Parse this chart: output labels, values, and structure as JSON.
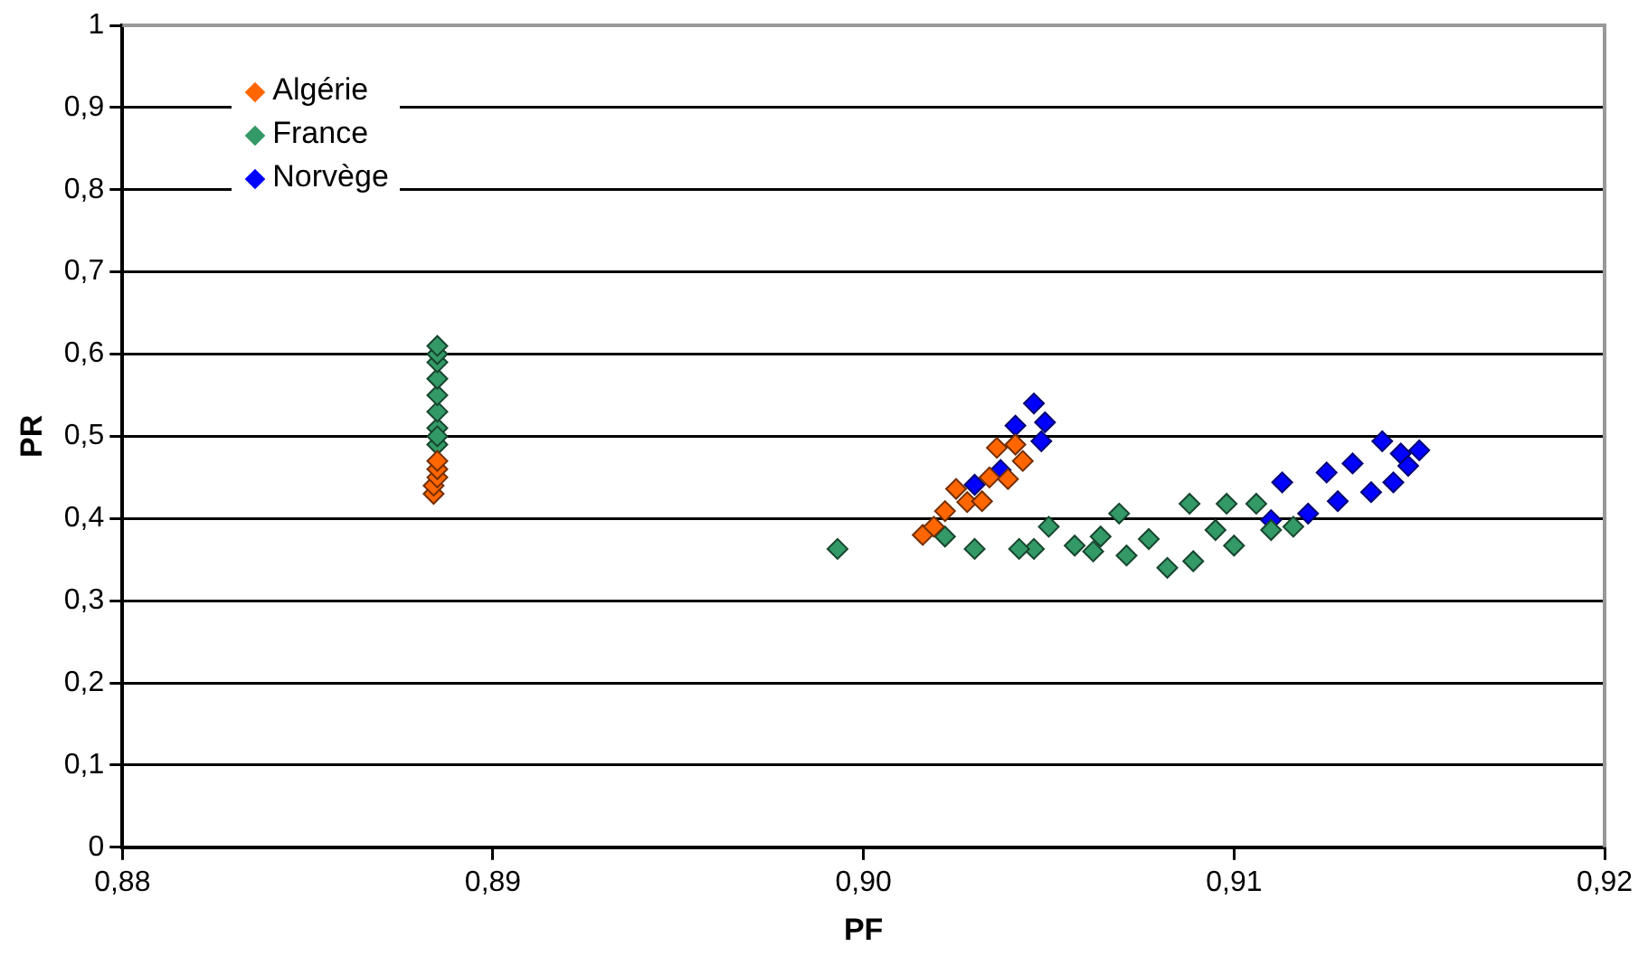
{
  "chart_data": {
    "type": "scatter",
    "xlabel": "PF",
    "ylabel": "PR",
    "xlim": [
      0.88,
      0.92
    ],
    "xticks": [
      {
        "value": 0.88,
        "label": "0,88"
      },
      {
        "value": 0.89,
        "label": "0,89"
      },
      {
        "value": 0.9,
        "label": "0,90"
      },
      {
        "value": 0.91,
        "label": "0,91"
      },
      {
        "value": 0.92,
        "label": "0,92"
      }
    ],
    "ylim": [
      0,
      1
    ],
    "yticks": [
      0,
      {
        "value": 0.1,
        "label": "0,1"
      },
      {
        "value": 0.2,
        "label": "0,2"
      },
      {
        "value": 0.3,
        "label": "0,3"
      },
      {
        "value": 0.4,
        "label": "0,4"
      },
      {
        "value": 0.5,
        "label": "0,5"
      },
      {
        "value": 0.6,
        "label": "0,6"
      },
      {
        "value": 0.7,
        "label": "0,7"
      },
      {
        "value": 0.8,
        "label": "0,8"
      },
      {
        "value": 0.9,
        "label": "0,9"
      },
      1
    ],
    "grid": "y",
    "legend": "top left",
    "marker": "diamond",
    "series": [
      {
        "name": "Algérie",
        "color": "#ff6600",
        "x": [
          0.8884,
          0.8884,
          0.8885,
          0.8885,
          0.8885,
          0.9016,
          0.9019,
          0.9022,
          0.9025,
          0.9028,
          0.9032,
          0.9034,
          0.9036,
          0.9039,
          0.9041,
          0.9043
        ],
        "values": [
          0.43,
          0.44,
          0.45,
          0.46,
          0.47,
          0.38,
          0.39,
          0.409,
          0.436,
          0.42,
          0.421,
          0.45,
          0.486,
          0.448,
          0.49,
          0.47
        ]
      },
      {
        "name": "France",
        "color": "#339966",
        "x": [
          0.8885,
          0.8885,
          0.8885,
          0.8885,
          0.8885,
          0.8885,
          0.8885,
          0.8885,
          0.8885,
          0.8993,
          0.9022,
          0.903,
          0.9046,
          0.9042,
          0.905,
          0.9057,
          0.9062,
          0.9064,
          0.9069,
          0.9071,
          0.9077,
          0.9082,
          0.9088,
          0.9089,
          0.9095,
          0.9098,
          0.91,
          0.9106,
          0.911,
          0.9116
        ],
        "values": [
          0.49,
          0.51,
          0.53,
          0.55,
          0.57,
          0.59,
          0.6,
          0.61,
          0.5,
          0.363,
          0.378,
          0.363,
          0.363,
          0.363,
          0.39,
          0.367,
          0.36,
          0.378,
          0.406,
          0.355,
          0.375,
          0.34,
          0.418,
          0.348,
          0.386,
          0.418,
          0.367,
          0.418,
          0.386,
          0.39
        ]
      },
      {
        "name": "Norvège",
        "color": "#0000ff",
        "x": [
          0.903,
          0.9037,
          0.9048,
          0.9049,
          0.9046,
          0.9041,
          0.911,
          0.9113,
          0.912,
          0.9125,
          0.9128,
          0.9132,
          0.9137,
          0.914,
          0.9143,
          0.9145,
          0.9147,
          0.915
        ],
        "values": [
          0.441,
          0.459,
          0.494,
          0.517,
          0.54,
          0.513,
          0.398,
          0.444,
          0.406,
          0.456,
          0.421,
          0.467,
          0.432,
          0.494,
          0.444,
          0.479,
          0.464,
          0.483
        ]
      }
    ]
  }
}
